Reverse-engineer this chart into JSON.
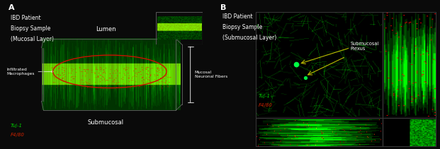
{
  "fig_width": 6.21,
  "fig_height": 2.11,
  "dpi": 100,
  "bg_color": "#0a0a0a",
  "panel_A": {
    "label": "A",
    "title_line1": "IBD Patient",
    "title_line2": "Biopsy Sample",
    "title_line3": "(Mucosal Layer)",
    "lumen_label": "Lumen",
    "submucosal_label": "Submucosal",
    "infiltrated_label": "Infiltrated\nMacrophages",
    "mucosal_fiber_label": "Mucosal\nNeuronal Fibers",
    "tuj1_label": "Tuj-1",
    "f480_label": "F4/80",
    "tuj1_color": "#00cc00",
    "f480_color": "#cc2200"
  },
  "panel_B": {
    "label": "B",
    "title_line1": "IBD Patient",
    "title_line2": "Biopsy Sample",
    "title_line3": "(Submucosal Layer)",
    "submucosal_plexus_label": "Submucosal\nPlexus",
    "tuj1_label": "Tuj-1",
    "f480_label": "F4/80",
    "tuj1_color": "#00cc00",
    "f480_color": "#cc2200",
    "arrow_color": "#bbbb00"
  }
}
